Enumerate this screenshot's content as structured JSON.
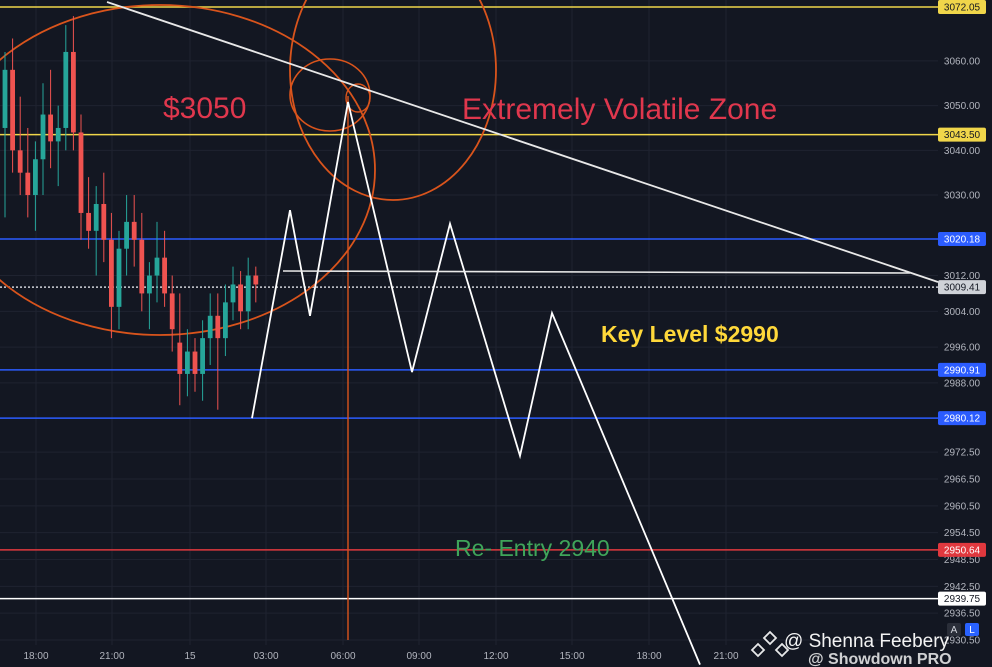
{
  "chart_data": {
    "type": "line",
    "title": "",
    "xlabel": "",
    "ylabel": "",
    "ylim": [
      2925,
      3075
    ],
    "x_ticks": [
      "18:00",
      "21:00",
      "15",
      "03:00",
      "06:00",
      "09:00",
      "12:00",
      "15:00",
      "18:00",
      "21:00"
    ],
    "y_ticks": [
      3060.0,
      3050.0,
      3040.0,
      3030.0,
      3012.0,
      3004.0,
      2996.0,
      2988.0,
      2972.5,
      2966.5,
      2960.5,
      2954.5,
      2948.5,
      2942.5,
      2936.5,
      2930.5
    ],
    "levels": [
      {
        "label": "3072.05",
        "value": 3072.05,
        "color": "#f0d64a"
      },
      {
        "label": "3043.50",
        "value": 3043.5,
        "color": "#f0d64a"
      },
      {
        "label": "3020.18",
        "value": 3020.18,
        "color": "#2b5cff"
      },
      {
        "label": "3009.41",
        "value": 3009.41,
        "color": "#cfd2d8"
      },
      {
        "label": "2990.91",
        "value": 2990.91,
        "color": "#2b5cff"
      },
      {
        "label": "2980.12",
        "value": 2980.12,
        "color": "#2b5cff"
      },
      {
        "label": "2950.64",
        "value": 2950.64,
        "color": "#e0383e"
      },
      {
        "label": "2939.75",
        "value": 2939.75,
        "color": "#ffffff"
      }
    ],
    "annotations": [
      {
        "text": "$3050",
        "color": "#e0374d"
      },
      {
        "text": "Extremely Volatile Zone",
        "color": "#e0374d"
      },
      {
        "text": "Key Level $2990",
        "color": "#ffd83a"
      },
      {
        "text": "Re- Entry 2940",
        "color": "#3fa55a"
      }
    ],
    "projection": [
      {
        "t": 0,
        "price": 2980.1
      },
      {
        "t": 1,
        "price": 3026.6
      },
      {
        "t": 2,
        "price": 3003.0
      },
      {
        "t": 3,
        "price": 3050.8
      },
      {
        "t": 4,
        "price": 2990.4
      },
      {
        "t": 5,
        "price": 3023.6
      },
      {
        "t": 6,
        "price": 2971.7
      },
      {
        "t": 7,
        "price": 3003.6
      },
      {
        "t": 8,
        "price": 2925.0
      }
    ],
    "candles": [
      [
        3045,
        3062,
        3025,
        3058
      ],
      [
        3058,
        3065,
        3035,
        3040
      ],
      [
        3040,
        3052,
        3030,
        3035
      ],
      [
        3035,
        3045,
        3025,
        3030
      ],
      [
        3030,
        3042,
        3022,
        3038
      ],
      [
        3038,
        3055,
        3030,
        3048
      ],
      [
        3048,
        3058,
        3036,
        3042
      ],
      [
        3042,
        3050,
        3032,
        3045
      ],
      [
        3045,
        3068,
        3040,
        3062
      ],
      [
        3062,
        3070,
        3040,
        3044
      ],
      [
        3044,
        3048,
        3020,
        3026
      ],
      [
        3026,
        3034,
        3018,
        3022
      ],
      [
        3022,
        3032,
        3012,
        3028
      ],
      [
        3028,
        3035,
        3015,
        3020
      ],
      [
        3020,
        3026,
        2998,
        3005
      ],
      [
        3005,
        3022,
        3000,
        3018
      ],
      [
        3018,
        3030,
        3012,
        3024
      ],
      [
        3024,
        3030,
        3014,
        3020
      ],
      [
        3020,
        3026,
        3004,
        3008
      ],
      [
        3008,
        3015,
        3000,
        3012
      ],
      [
        3012,
        3024,
        3006,
        3016
      ],
      [
        3016,
        3022,
        3005,
        3008
      ],
      [
        3008,
        3012,
        2995,
        3000
      ],
      [
        2997,
        3008,
        2983,
        2990
      ],
      [
        2990,
        3000,
        2985,
        2995
      ],
      [
        2995,
        2998,
        2986,
        2990
      ],
      [
        2990,
        3002,
        2984,
        2998
      ],
      [
        2998,
        3008,
        2992,
        3003
      ],
      [
        3003,
        3008,
        2982,
        2998
      ],
      [
        2998,
        3010,
        2994,
        3006
      ],
      [
        3006,
        3014,
        3002,
        3010
      ],
      [
        3010,
        3013,
        3000,
        3004
      ],
      [
        3004,
        3016,
        3000,
        3012
      ],
      [
        3012,
        3014,
        3006,
        3010
      ]
    ]
  },
  "watermark": {
    "line1": "@ Shenna Feebery",
    "line2": "@ Showdown PRO"
  },
  "corner_buttons": [
    "A",
    "L"
  ]
}
